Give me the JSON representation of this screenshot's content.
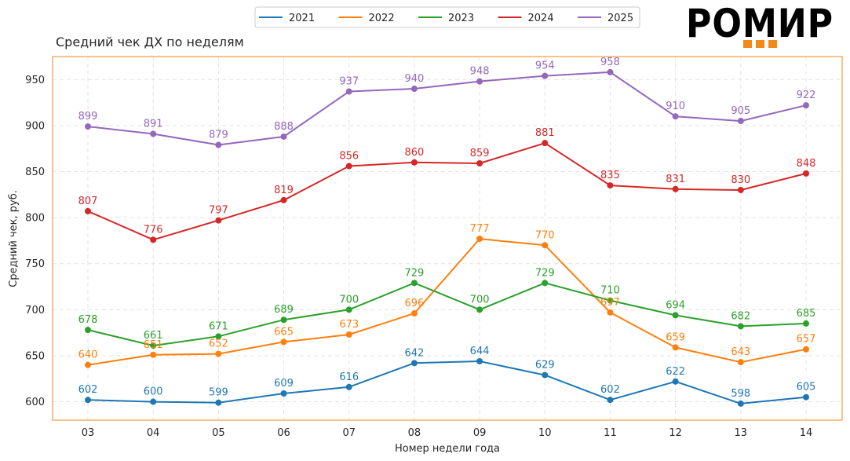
{
  "logo": {
    "text": "РОМИР",
    "accent_color": "#f28a1a"
  },
  "chart_data": {
    "type": "line",
    "title": "Средний чек ДХ по неделям",
    "xlabel": "Номер недели года",
    "ylabel": "Средний чек, руб.",
    "categories": [
      "03",
      "04",
      "05",
      "06",
      "07",
      "08",
      "09",
      "10",
      "11",
      "12",
      "13",
      "14"
    ],
    "ylim": [
      580,
      975
    ],
    "yticks": [
      600,
      650,
      700,
      750,
      800,
      850,
      900,
      950
    ],
    "grid": true,
    "legend_position": "top-center",
    "frame_color": "#f28a1a",
    "series": [
      {
        "name": "2021",
        "color": "#1f77b4",
        "values": [
          602,
          600,
          599,
          609,
          616,
          642,
          644,
          629,
          602,
          622,
          598,
          605
        ]
      },
      {
        "name": "2022",
        "color": "#ff7f0e",
        "values": [
          640,
          651,
          652,
          665,
          673,
          696,
          777,
          770,
          697,
          659,
          643,
          657
        ]
      },
      {
        "name": "2023",
        "color": "#2ca02c",
        "values": [
          678,
          661,
          671,
          689,
          700,
          729,
          700,
          729,
          710,
          694,
          682,
          685
        ]
      },
      {
        "name": "2024",
        "color": "#d62728",
        "values": [
          807,
          776,
          797,
          819,
          856,
          860,
          859,
          881,
          835,
          831,
          830,
          848
        ]
      },
      {
        "name": "2025",
        "color": "#9467bd",
        "values": [
          899,
          891,
          879,
          888,
          937,
          940,
          948,
          954,
          958,
          910,
          905,
          922
        ]
      }
    ]
  }
}
